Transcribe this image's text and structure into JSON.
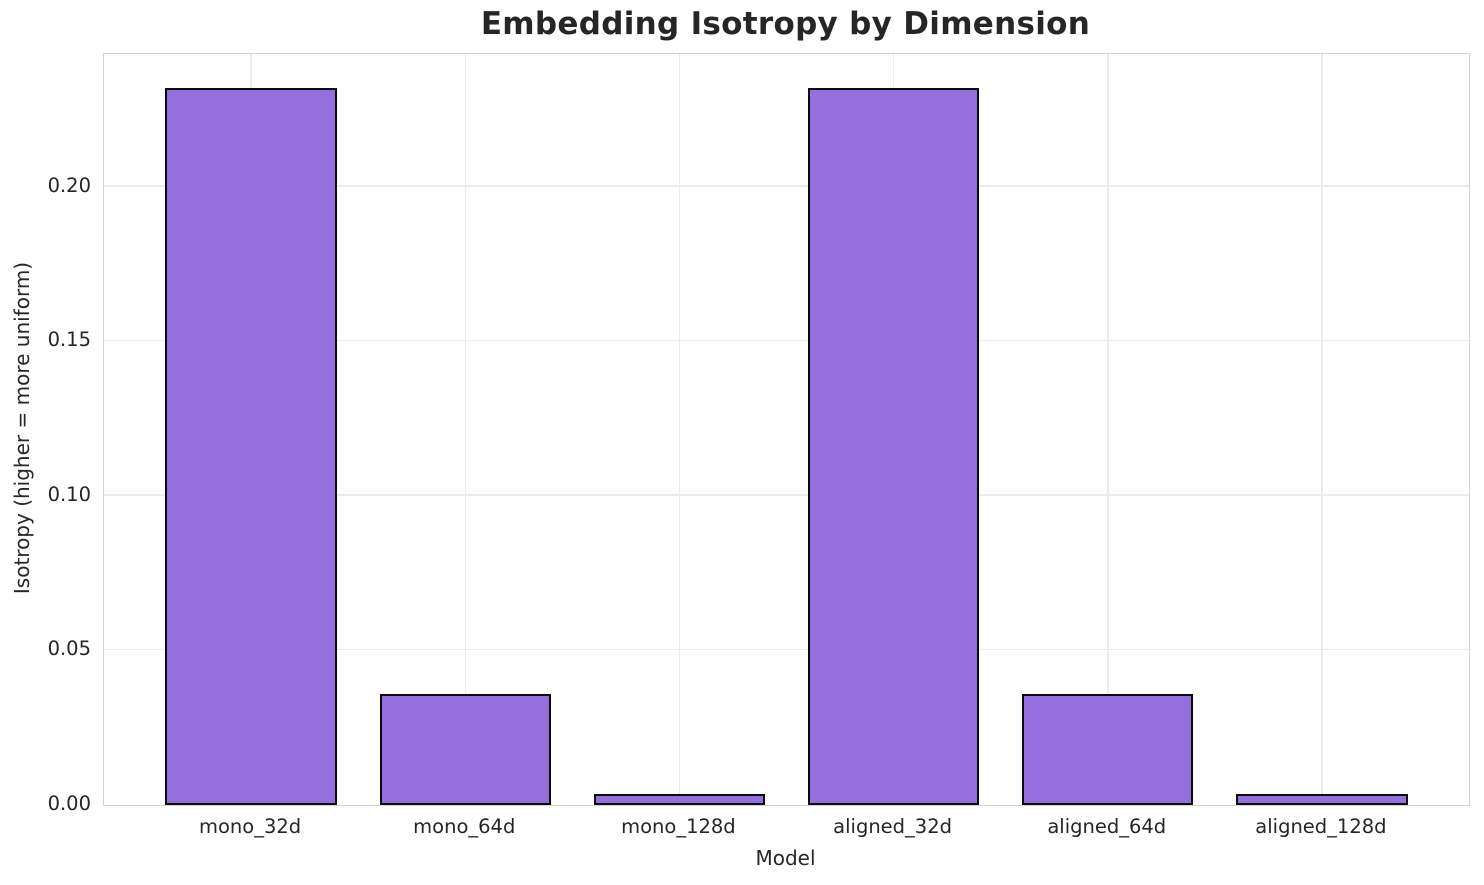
{
  "chart_data": {
    "type": "bar",
    "title": "Embedding Isotropy by Dimension",
    "xlabel": "Model",
    "ylabel": "Isotropy (higher = more uniform)",
    "categories": [
      "mono_32d",
      "mono_64d",
      "mono_128d",
      "aligned_32d",
      "aligned_64d",
      "aligned_128d"
    ],
    "values": [
      0.232,
      0.036,
      0.0035,
      0.232,
      0.036,
      0.0035
    ],
    "ytick_values": [
      0.0,
      0.05,
      0.1,
      0.15,
      0.2
    ],
    "ytick_labels": [
      "0.00",
      "0.05",
      "0.10",
      "0.15",
      "0.20"
    ],
    "ylim": [
      0,
      0.243
    ],
    "grid": true,
    "legend": null,
    "colors": {
      "bar_fill": "#9370DB",
      "bar_edge": "#0b0b0b",
      "gridline": "#ececec",
      "spine": "#d2d2d2",
      "text": "#262626"
    }
  }
}
